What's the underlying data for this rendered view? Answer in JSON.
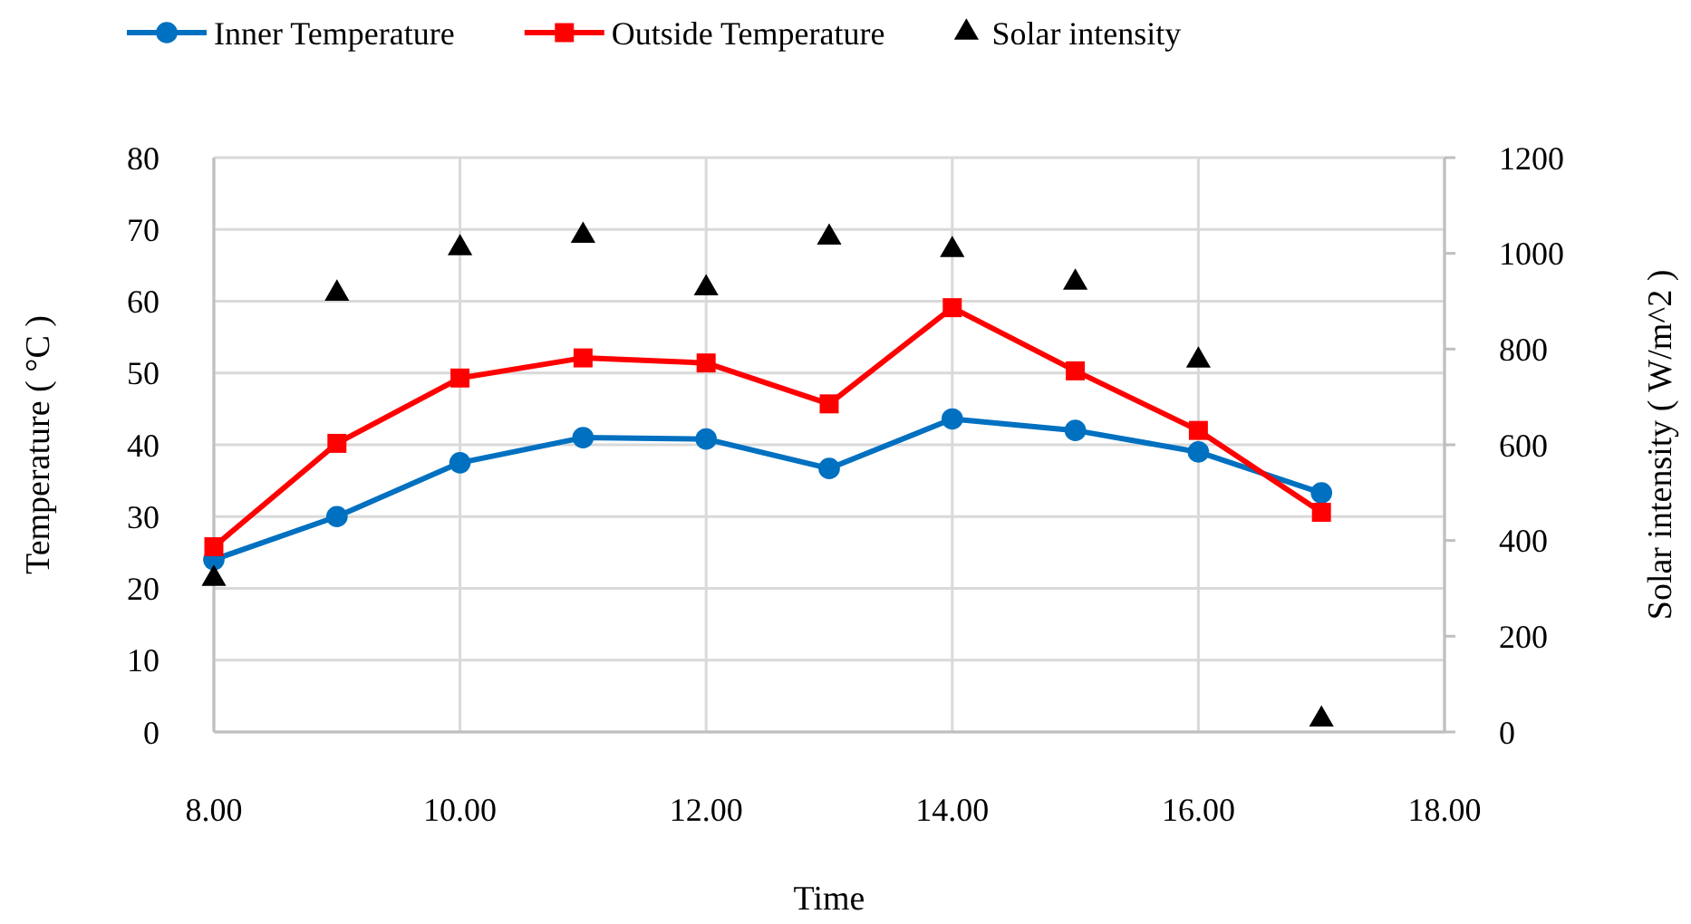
{
  "chart_data": {
    "type": "line",
    "xlabel": "Time",
    "ylabel": "Temperature ( °C )",
    "y2label": "Solar intensity ( W/m^2 )",
    "x": [
      8,
      9,
      10,
      11,
      12,
      13,
      14,
      15,
      16,
      17
    ],
    "xlim": [
      8,
      18
    ],
    "xticks": [
      {
        "value": 8,
        "label": "8.00"
      },
      {
        "value": 10,
        "label": "10.00"
      },
      {
        "value": 12,
        "label": "12.00"
      },
      {
        "value": 14,
        "label": "14.00"
      },
      {
        "value": 16,
        "label": "16.00"
      },
      {
        "value": 18,
        "label": "18.00"
      }
    ],
    "ylim": [
      0,
      80
    ],
    "yticks": [
      0,
      10,
      20,
      30,
      40,
      50,
      60,
      70,
      80
    ],
    "y2lim": [
      0,
      1200
    ],
    "y2ticks": [
      0,
      200,
      400,
      600,
      800,
      1000,
      1200
    ],
    "grid": true,
    "legend": "top",
    "series": [
      {
        "name": "Inner Temperature",
        "color": "#0070c0",
        "marker": "circle",
        "values": [
          24,
          30,
          37.5,
          41,
          40.8,
          36.7,
          43.6,
          42,
          39,
          33.3
        ]
      },
      {
        "name": "Outside Temperature",
        "color": "#ff0000",
        "marker": "square",
        "values": [
          25.8,
          40.2,
          49.3,
          52.1,
          51.4,
          45.7,
          59.1,
          50.3,
          42,
          30.6
        ]
      },
      {
        "name": "Solar intensity",
        "type": "scatter",
        "axis": "y2",
        "color": "#000000",
        "marker": "triangle",
        "values": [
          320,
          916,
          1011,
          1037,
          927,
          1033,
          1007,
          939,
          776,
          26
        ]
      }
    ]
  }
}
